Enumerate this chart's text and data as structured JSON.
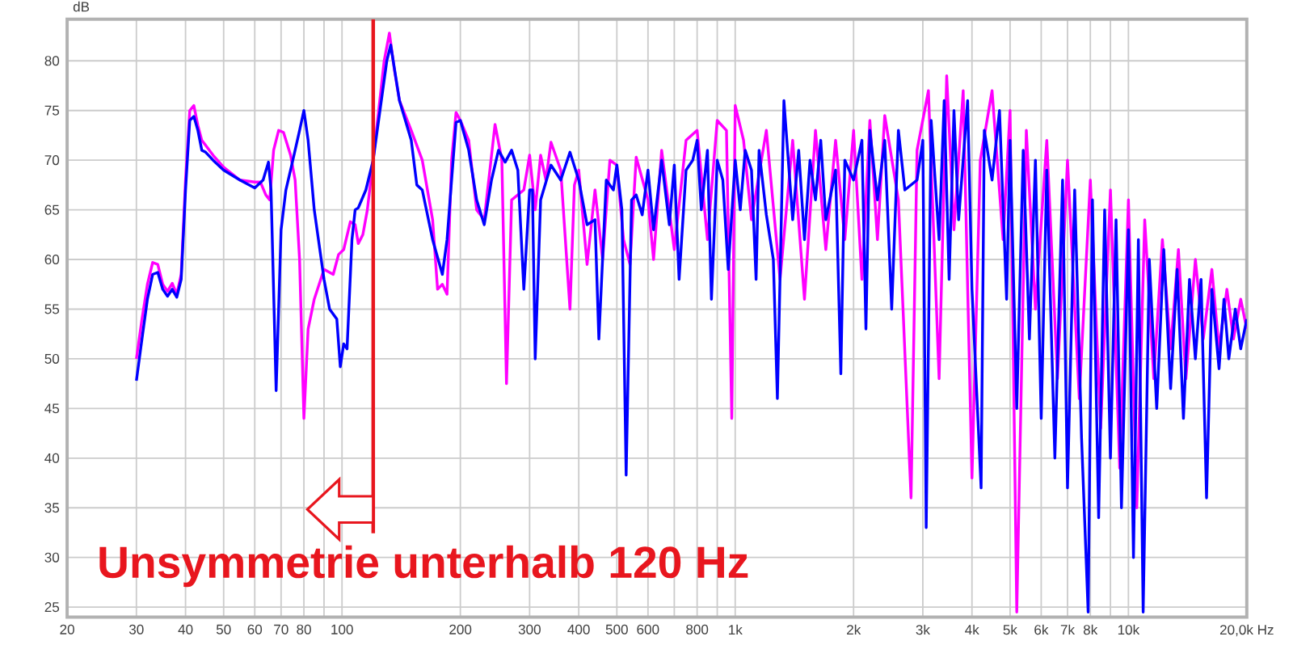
{
  "chart_data": {
    "type": "line",
    "ylabel": "dB",
    "log": "x",
    "grid": true,
    "line_style": "solid",
    "xlim": [
      20,
      20000
    ],
    "ylim": [
      24,
      84.2
    ],
    "xticks": [
      20,
      30,
      40,
      50,
      60,
      70,
      80,
      {
        "value": 90,
        "label": null
      },
      100,
      200,
      300,
      400,
      500,
      600,
      {
        "value": 700,
        "label": null
      },
      800,
      {
        "value": 900,
        "label": null
      },
      {
        "value": 1000,
        "label": "1k"
      },
      {
        "value": 2000,
        "label": "2k"
      },
      {
        "value": 3000,
        "label": "3k"
      },
      {
        "value": 4000,
        "label": "4k"
      },
      {
        "value": 5000,
        "label": "5k"
      },
      {
        "value": 6000,
        "label": "6k"
      },
      {
        "value": 7000,
        "label": "7k"
      },
      {
        "value": 8000,
        "label": "8k"
      },
      {
        "value": 9000,
        "label": null
      },
      {
        "value": 10000,
        "label": "10k"
      },
      {
        "value": 20000,
        "label": "20,0k Hz"
      }
    ],
    "yticks": [
      25,
      30,
      35,
      40,
      45,
      50,
      55,
      60,
      65,
      70,
      75,
      80
    ],
    "ref_lines": [
      {
        "axis": "x",
        "value": 120,
        "color": "#e8161e"
      }
    ],
    "annotations": [
      "Unsymmetrie unterhalb 120 Hz"
    ],
    "series": [
      {
        "color": "#ff00ff",
        "x": [
          30,
          31,
          32,
          33,
          34,
          35,
          36,
          37,
          38,
          39,
          40,
          41,
          42,
          43,
          44,
          45,
          47,
          50,
          55,
          60,
          62,
          64,
          65.5,
          67,
          69,
          71,
          74,
          76,
          78,
          80,
          82,
          85,
          90,
          95,
          98,
          101,
          105,
          108,
          110,
          113,
          116,
          120,
          128,
          132,
          136,
          140,
          150,
          160,
          170,
          175,
          180,
          185,
          190,
          195,
          200,
          210,
          220,
          230,
          245,
          255,
          262,
          270,
          290,
          300,
          310,
          320,
          330,
          340,
          360,
          380,
          390,
          400,
          420,
          440,
          460,
          480,
          500,
          520,
          540,
          560,
          600,
          620,
          650,
          700,
          750,
          800,
          850,
          900,
          950,
          980,
          1000,
          1050,
          1100,
          1200,
          1300,
          1400,
          1500,
          1600,
          1700,
          1800,
          1900,
          2000,
          2100,
          2200,
          2300,
          2400,
          2600,
          2800,
          2900,
          3100,
          3300,
          3450,
          3600,
          3800,
          4000,
          4200,
          4500,
          4800,
          5000,
          5200,
          5500,
          5800,
          6200,
          6600,
          7000,
          7500,
          8000,
          8500,
          9000,
          9500,
          10000,
          10500,
          11000,
          11600,
          12200,
          12800,
          13400,
          14000,
          14800,
          15500,
          16300,
          17000,
          17800,
          18500,
          19300,
          20000
        ],
        "values": [
          50,
          54,
          57.5,
          59.7,
          59.5,
          57.5,
          56.8,
          57.6,
          56.5,
          58.5,
          68,
          75,
          75.5,
          73.5,
          72,
          71.5,
          70.5,
          69.3,
          68,
          67.8,
          67.8,
          66.5,
          66,
          71,
          73,
          72.8,
          70.5,
          68,
          60,
          44,
          53,
          56,
          59,
          58.5,
          60.5,
          61,
          63.8,
          63.5,
          61.6,
          62.5,
          65,
          70,
          80,
          82.8,
          79,
          76,
          73,
          70,
          64,
          57,
          57.5,
          56.5,
          70,
          74.8,
          74,
          72,
          65,
          64,
          73.6,
          70,
          47.5,
          66,
          67,
          70.5,
          65,
          70.5,
          68,
          71.8,
          69,
          55,
          67.5,
          69,
          59.5,
          67,
          60,
          70,
          69.5,
          62,
          59.5,
          70.3,
          66,
          60,
          71,
          61,
          72,
          73,
          62,
          74,
          73,
          44,
          75.5,
          72,
          64,
          73,
          58,
          72,
          56,
          73,
          61,
          72,
          62,
          73,
          58,
          74,
          62,
          74.5,
          66,
          36,
          71,
          77,
          48,
          78.5,
          63,
          77,
          38,
          70,
          77,
          62,
          75,
          24.5,
          73,
          55,
          72,
          48,
          70,
          46,
          68,
          43,
          67,
          39,
          66,
          35,
          64,
          48,
          62,
          51,
          61,
          48,
          60,
          52,
          59,
          51,
          57,
          52,
          56,
          53
        ]
      },
      {
        "color": "#0000ff",
        "x": [
          30,
          31,
          32,
          33,
          34,
          35,
          36,
          37,
          38,
          39,
          40,
          41,
          42,
          43,
          44,
          45,
          47,
          50,
          55,
          60,
          63,
          65,
          66,
          68,
          70,
          72,
          75,
          78,
          80,
          82,
          85,
          90,
          93,
          97,
          99,
          101,
          103,
          106,
          108,
          110,
          115,
          120,
          130,
          133,
          140,
          150,
          155,
          160,
          170,
          180,
          185,
          195,
          200,
          210,
          220,
          230,
          240,
          250,
          260,
          270,
          280,
          290,
          300,
          305,
          310,
          320,
          340,
          360,
          380,
          400,
          420,
          440,
          450,
          470,
          490,
          500,
          515,
          528,
          545,
          560,
          580,
          600,
          620,
          650,
          680,
          700,
          720,
          750,
          780,
          800,
          820,
          850,
          870,
          900,
          930,
          960,
          1000,
          1030,
          1060,
          1100,
          1130,
          1150,
          1200,
          1250,
          1280,
          1330,
          1400,
          1450,
          1500,
          1550,
          1600,
          1650,
          1700,
          1800,
          1856,
          1900,
          2000,
          2100,
          2150,
          2200,
          2300,
          2400,
          2500,
          2600,
          2700,
          2900,
          3000,
          3060,
          3150,
          3300,
          3400,
          3500,
          3600,
          3700,
          3900,
          4000,
          4220,
          4300,
          4500,
          4700,
          4900,
          5000,
          5200,
          5400,
          5600,
          5800,
          6000,
          6200,
          6500,
          6800,
          7000,
          7300,
          7600,
          7900,
          8100,
          8400,
          8700,
          9000,
          9300,
          9600,
          10000,
          10300,
          10600,
          10900,
          11300,
          11800,
          12300,
          12800,
          13300,
          13800,
          14300,
          14800,
          15300,
          15800,
          16300,
          17000,
          17500,
          18000,
          18700,
          19300,
          20000
        ],
        "values": [
          47.8,
          52,
          56,
          58.5,
          58.7,
          57,
          56.3,
          57,
          56.2,
          58,
          67,
          74,
          74.4,
          73,
          71,
          70.8,
          70,
          69,
          68,
          67.2,
          68,
          69.8,
          67,
          46.8,
          63,
          67,
          70,
          73,
          75,
          72,
          65,
          58,
          55,
          54,
          49.2,
          51.5,
          51,
          62,
          65,
          65.2,
          67,
          70,
          80,
          81.6,
          76,
          72,
          67.5,
          67,
          62,
          58.5,
          62,
          73.8,
          74,
          71,
          66,
          63.5,
          68,
          71,
          69.8,
          71,
          69,
          57,
          67,
          67,
          50,
          66,
          69.5,
          68,
          70.8,
          68,
          63.5,
          64,
          52,
          68,
          67,
          69.5,
          65,
          38.3,
          66,
          66.5,
          64.5,
          69,
          63,
          70,
          63.5,
          69.5,
          58,
          69,
          70,
          72,
          65,
          71,
          56,
          70,
          68,
          59,
          70,
          65,
          71,
          69,
          58,
          71,
          64.5,
          60,
          46,
          76,
          64,
          71,
          62,
          70,
          66,
          72,
          64,
          69,
          48.5,
          70,
          68,
          72,
          53,
          73,
          66,
          72,
          55,
          73,
          67,
          68,
          72,
          33,
          74,
          62,
          76,
          58,
          75,
          64,
          76,
          57,
          37,
          73,
          68,
          75,
          56,
          72,
          45,
          71,
          52,
          70,
          44,
          69,
          40,
          68,
          37,
          67,
          42,
          24.5,
          66,
          34,
          65,
          40,
          64,
          35,
          63,
          30,
          62,
          24.5,
          60,
          45,
          61,
          47,
          59,
          44,
          58,
          50,
          58,
          36,
          57,
          49,
          56,
          50,
          55,
          51,
          54
        ]
      }
    ]
  }
}
